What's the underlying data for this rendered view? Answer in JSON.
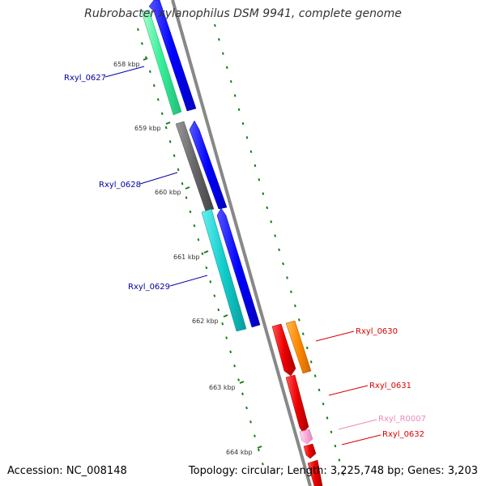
{
  "title": "Rubrobacter xylanophilus DSM 9941, complete genome",
  "footer": {
    "accession": "Accession: NC_008148",
    "topology": "Topology: circular; Length: 3,225,748 bp; Genes: 3,203"
  },
  "colors": {
    "backbone": "#888888",
    "tick": "#1a7a1a",
    "label_blue": "#0000aa",
    "label_red": "#dd0000",
    "label_pink": "#ee88bb"
  },
  "ticks": [
    {
      "label": "658 kbp"
    },
    {
      "label": "659 kbp"
    },
    {
      "label": "660 kbp"
    },
    {
      "label": "661 kbp"
    },
    {
      "label": "662 kbp"
    },
    {
      "label": "663 kbp"
    },
    {
      "label": "664 kbp"
    }
  ],
  "genes": [
    {
      "label": "Rxyl_0627",
      "color": "#33ee99",
      "label_color": "#0000aa"
    },
    {
      "label": "Rxyl_0628",
      "color": "#666666",
      "label_color": "#0000aa"
    },
    {
      "label": "Rxyl_0629",
      "color": "#22cccc",
      "label_color": "#0000aa"
    },
    {
      "label": "Rxyl_0630",
      "color": "#ff8800",
      "label_color": "#dd0000"
    },
    {
      "label": "Rxyl_0631",
      "color": "#ee0000",
      "label_color": "#dd0000"
    },
    {
      "label": "Rxyl_R0007",
      "color": "#ffaadd",
      "label_color": "#ee88bb"
    },
    {
      "label": "Rxyl_0632",
      "color": "#ee0000",
      "label_color": "#dd0000"
    }
  ]
}
